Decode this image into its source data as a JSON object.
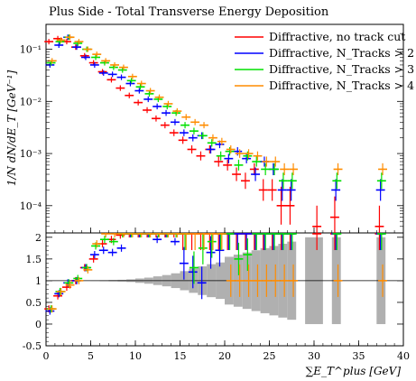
{
  "chart_data": {
    "type": "scatter",
    "title": "Plus Side - Total Transverse Energy Deposition",
    "xlabel": "∑E_T^plus [GeV]",
    "ylabel": "1/N dN/dE_T [GeV⁻¹]",
    "x_ticks": [
      "0",
      "5",
      "10",
      "15",
      "20",
      "25",
      "30",
      "35",
      "40"
    ],
    "y_ticks_main": [
      "10⁻⁴",
      "10⁻³",
      "10⁻²",
      "10⁻¹"
    ],
    "y_ticks_ratio": [
      "-0.5",
      "0",
      "0.5",
      "1",
      "1.5",
      "2"
    ],
    "xlim": [
      0,
      40
    ],
    "ylim_main": [
      3e-05,
      0.3
    ],
    "ylim_ratio": [
      -0.5,
      2.1
    ],
    "yscale_main": "log",
    "bin_width": 1,
    "legend_position": "top-right",
    "series": [
      {
        "name": "Diffractive, no track cut",
        "color": "#ff0000",
        "x": [
          0.5,
          1.5,
          2.5,
          3.5,
          4.5,
          5.5,
          6.5,
          7.5,
          8.5,
          9.5,
          10.5,
          11.5,
          12.5,
          13.5,
          14.5,
          15.5,
          16.5,
          17.5,
          18.5,
          19.5,
          20.5,
          21.5,
          22.5,
          23.5,
          24.5,
          25.5,
          26.5,
          27.5,
          30.5,
          32.5,
          37.5
        ],
        "y": [
          0.14,
          0.16,
          0.14,
          0.11,
          0.075,
          0.055,
          0.037,
          0.026,
          0.018,
          0.013,
          0.0095,
          0.0068,
          0.0047,
          0.0035,
          0.0025,
          0.0018,
          0.0012,
          0.0009,
          0.0012,
          0.0007,
          0.0006,
          0.0004,
          0.0003,
          0.0005,
          0.0002,
          0.0002,
          0.0001,
          0.0001,
          4e-05,
          6e-05,
          4e-05
        ],
        "ratio": [
          0.35,
          0.65,
          0.85,
          1.0,
          1.3,
          1.5,
          1.85,
          1.95,
          2.05,
          2.1,
          2.1,
          2.1,
          2.1,
          2.1,
          2.1,
          2.1,
          2.1,
          2.1,
          2.1,
          2.1,
          2.1,
          2.1,
          2.1,
          2.1,
          2.1,
          2.1,
          2.1,
          2.1,
          2.1,
          2.1,
          2.1
        ]
      },
      {
        "name": "Diffractive, N_Tracks > 2",
        "color": "#0000ff",
        "x": [
          0.5,
          1.5,
          2.5,
          3.5,
          4.5,
          5.5,
          6.5,
          7.5,
          8.5,
          9.5,
          10.5,
          11.5,
          12.5,
          13.5,
          14.5,
          15.5,
          16.5,
          17.5,
          18.5,
          19.5,
          20.5,
          21.5,
          22.5,
          23.5,
          24.5,
          25.5,
          26.5,
          27.5,
          32.5,
          37.5
        ],
        "y": [
          0.05,
          0.12,
          0.17,
          0.11,
          0.07,
          0.05,
          0.035,
          0.033,
          0.029,
          0.022,
          0.016,
          0.011,
          0.008,
          0.006,
          0.004,
          0.0025,
          0.002,
          0.0022,
          0.0012,
          0.0015,
          0.0008,
          0.0011,
          0.0008,
          0.0004,
          0.0007,
          0.0005,
          0.0002,
          0.0002,
          0.0002,
          0.0002
        ],
        "ratio": [
          0.3,
          0.7,
          0.95,
          1.0,
          1.3,
          1.6,
          1.7,
          1.65,
          1.75,
          2.1,
          2.1,
          2.1,
          1.95,
          2.1,
          1.9,
          1.4,
          1.2,
          0.95,
          1.65,
          1.7,
          2.1,
          2.1,
          2.1,
          2.1,
          2.1,
          2.1,
          2.1,
          2.1,
          2.1,
          2.1
        ]
      },
      {
        "name": "Diffractive, N_Tracks > 3",
        "color": "#00e000",
        "x": [
          0.5,
          1.5,
          2.5,
          3.5,
          4.5,
          5.5,
          6.5,
          7.5,
          8.5,
          9.5,
          10.5,
          11.5,
          12.5,
          13.5,
          14.5,
          15.5,
          16.5,
          17.5,
          18.5,
          19.5,
          20.5,
          21.5,
          22.5,
          23.5,
          24.5,
          25.5,
          26.5,
          27.5,
          32.5,
          37.5
        ],
        "y": [
          0.055,
          0.14,
          0.17,
          0.13,
          0.1,
          0.07,
          0.055,
          0.045,
          0.04,
          0.025,
          0.019,
          0.014,
          0.011,
          0.008,
          0.006,
          0.0035,
          0.0027,
          0.0022,
          0.0016,
          0.0009,
          0.0011,
          0.0006,
          0.0009,
          0.0007,
          0.0005,
          0.0005,
          0.0003,
          0.0003,
          0.0003,
          0.0003
        ],
        "ratio": [
          0.35,
          0.75,
          0.95,
          1.05,
          1.3,
          1.8,
          1.95,
          1.9,
          2.1,
          2.1,
          2.1,
          2.1,
          2.1,
          2.1,
          2.1,
          2.1,
          1.3,
          1.75,
          1.9,
          2.1,
          2.1,
          1.5,
          1.6,
          2.1,
          2.1,
          2.1,
          2.1,
          2.1,
          2.1,
          2.1
        ]
      },
      {
        "name": "Diffractive, N_Tracks > 4",
        "color": "#ff8c00",
        "x": [
          0.5,
          1.5,
          2.5,
          3.5,
          4.5,
          5.5,
          6.5,
          7.5,
          8.5,
          9.5,
          10.5,
          11.5,
          12.5,
          13.5,
          14.5,
          15.5,
          16.5,
          17.5,
          18.5,
          19.5,
          20.5,
          21.5,
          22.5,
          23.5,
          24.5,
          25.5,
          26.5,
          27.5,
          32.5,
          37.5
        ],
        "y": [
          0.06,
          0.15,
          0.17,
          0.14,
          0.1,
          0.08,
          0.06,
          0.05,
          0.045,
          0.03,
          0.022,
          0.016,
          0.012,
          0.009,
          0.0065,
          0.005,
          0.004,
          0.0035,
          0.002,
          0.0017,
          0.0012,
          0.001,
          0.001,
          0.0009,
          0.0007,
          0.0007,
          0.0005,
          0.0005,
          0.0005,
          0.0005
        ],
        "ratio": [
          0.35,
          0.75,
          0.9,
          1.0,
          1.25,
          1.85,
          2.1,
          2.1,
          2.1,
          2.1,
          2.1,
          2.1,
          2.1,
          2.1,
          2.1,
          2.1,
          2.1,
          2.1,
          2.1,
          2.1,
          1.0,
          1.0,
          1.0,
          1.0,
          1.0,
          1.0,
          1.0,
          1.0,
          1.0,
          1.0
        ]
      }
    ],
    "ratio_band": {
      "color": "#b0b0b0",
      "x": [
        5.5,
        6.5,
        7.5,
        8.5,
        9.5,
        10.5,
        11.5,
        12.5,
        13.5,
        14.5,
        15.5,
        16.5,
        17.5,
        18.5,
        19.5,
        20.5,
        21.5,
        22.5,
        23.5,
        24.5,
        25.5,
        26.5,
        27.5,
        29.5,
        30.5,
        32.5,
        37.5
      ],
      "half_width": [
        0.005,
        0.01,
        0.015,
        0.02,
        0.03,
        0.05,
        0.07,
        0.1,
        0.13,
        0.17,
        0.22,
        0.28,
        0.33,
        0.38,
        0.42,
        0.55,
        0.6,
        0.65,
        0.7,
        0.75,
        0.8,
        0.85,
        0.9,
        1.0,
        1.0,
        1.0,
        1.0
      ]
    }
  }
}
